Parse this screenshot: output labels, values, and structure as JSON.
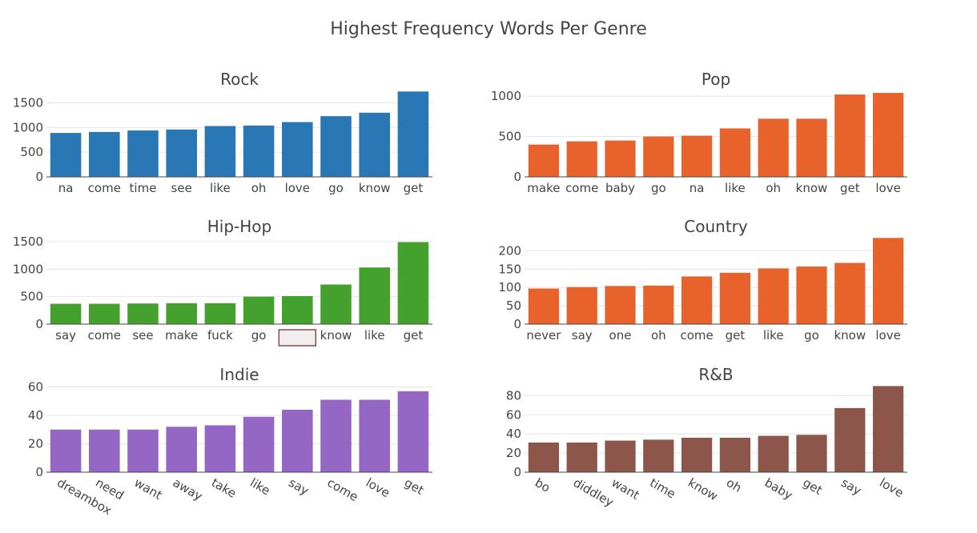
{
  "title": "Highest Frequency Words Per Genre",
  "chart_data": [
    {
      "type": "bar",
      "title": "Rock",
      "color": "#2a77b6",
      "categories": [
        "na",
        "come",
        "time",
        "see",
        "like",
        "oh",
        "love",
        "go",
        "know",
        "get"
      ],
      "values": [
        890,
        910,
        940,
        960,
        1030,
        1040,
        1110,
        1230,
        1300,
        1730
      ],
      "yticks": [
        0,
        500,
        1000,
        1500
      ],
      "ylim": [
        0,
        1800
      ]
    },
    {
      "type": "bar",
      "title": "Pop",
      "color": "#e8622c",
      "categories": [
        "make",
        "come",
        "baby",
        "go",
        "na",
        "like",
        "oh",
        "know",
        "get",
        "love"
      ],
      "values": [
        400,
        440,
        450,
        500,
        510,
        600,
        720,
        720,
        1020,
        1040
      ],
      "yticks": [
        0,
        500,
        1000
      ],
      "ylim": [
        0,
        1100
      ]
    },
    {
      "type": "bar",
      "title": "Hip-Hop",
      "color": "#44a12e",
      "categories": [
        "say",
        "come",
        "see",
        "make",
        "fuck",
        "go",
        "",
        "know",
        "like",
        "get"
      ],
      "values": [
        370,
        370,
        375,
        380,
        380,
        500,
        510,
        720,
        1030,
        1490
      ],
      "yticks": [
        0,
        500,
        1000,
        1500
      ],
      "ylim": [
        0,
        1600
      ]
    },
    {
      "type": "bar",
      "title": "Country",
      "color": "#e8622c",
      "categories": [
        "never",
        "say",
        "one",
        "oh",
        "come",
        "get",
        "like",
        "go",
        "know",
        "love"
      ],
      "values": [
        97,
        101,
        104,
        105,
        130,
        140,
        152,
        157,
        167,
        235
      ],
      "yticks": [
        0,
        50,
        100,
        150,
        200
      ],
      "ylim": [
        0,
        240
      ]
    },
    {
      "type": "bar",
      "title": "Indie",
      "color": "#9467c4",
      "categories": [
        "dreambox",
        "need",
        "want",
        "away",
        "take",
        "like",
        "say",
        "come",
        "love",
        "get"
      ],
      "values": [
        30,
        30,
        30,
        32,
        33,
        39,
        44,
        51,
        51,
        57
      ],
      "yticks": [
        0,
        20,
        40,
        60
      ],
      "ylim": [
        0,
        62
      ]
    },
    {
      "type": "bar",
      "title": "R&B",
      "color": "#8c564b",
      "categories": [
        "bo",
        "diddley",
        "want",
        "time",
        "know",
        "oh",
        "baby",
        "get",
        "say",
        "love"
      ],
      "values": [
        31,
        31,
        33,
        34,
        36,
        36,
        38,
        39,
        67,
        90
      ],
      "yticks": [
        0,
        20,
        40,
        60,
        80
      ],
      "ylim": [
        0,
        92
      ]
    }
  ]
}
